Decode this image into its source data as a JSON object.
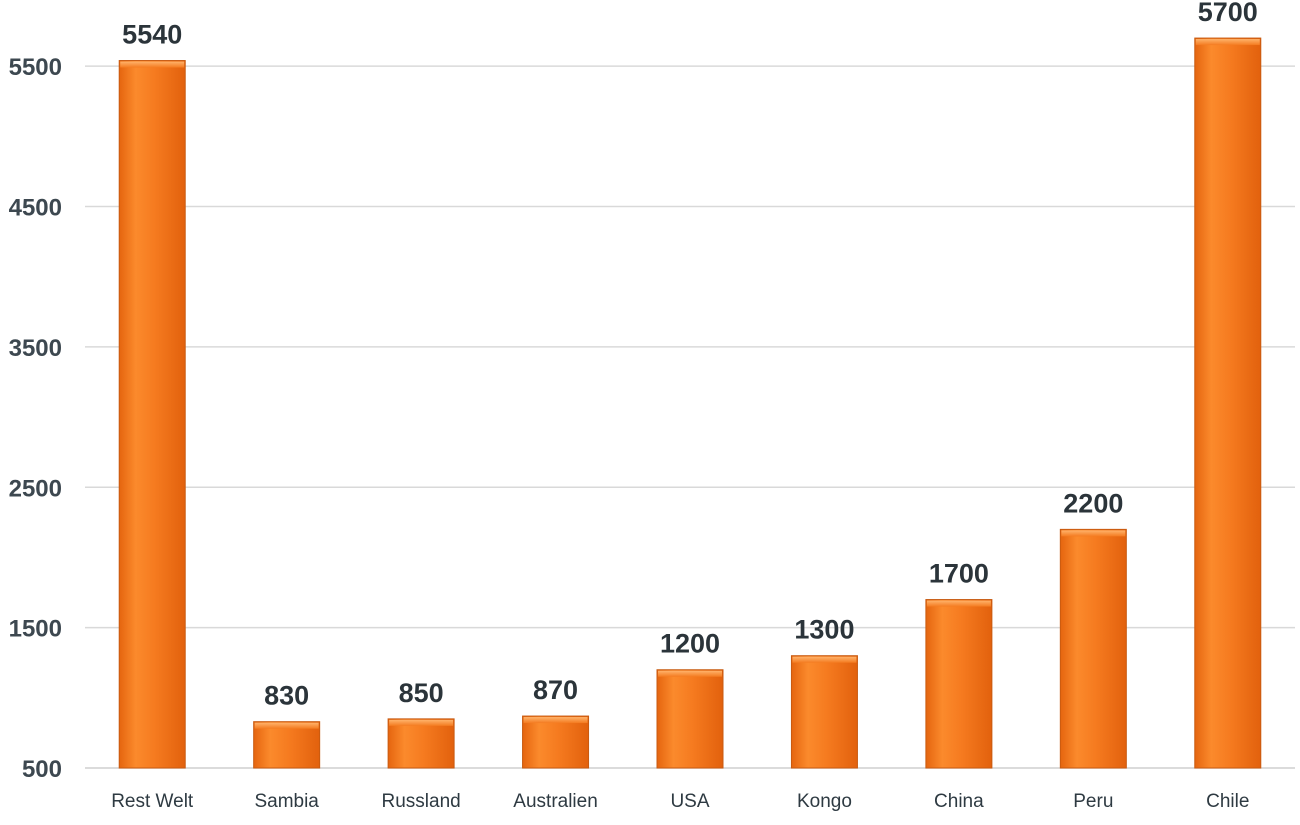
{
  "chart_data": {
    "type": "bar",
    "title": "",
    "xlabel": "",
    "ylabel": "",
    "categories": [
      "Rest Welt",
      "Sambia",
      "Russland",
      "Australien",
      "USA",
      "Kongo",
      "China",
      "Peru",
      "Chile"
    ],
    "values": [
      5540,
      830,
      850,
      870,
      1200,
      1300,
      1700,
      2200,
      5700
    ],
    "ylim": [
      500,
      5900
    ],
    "yticks": [
      500,
      1500,
      2500,
      3500,
      4500,
      5500
    ],
    "grid": true,
    "data_labels": true,
    "bar_color": "#f47b20"
  }
}
